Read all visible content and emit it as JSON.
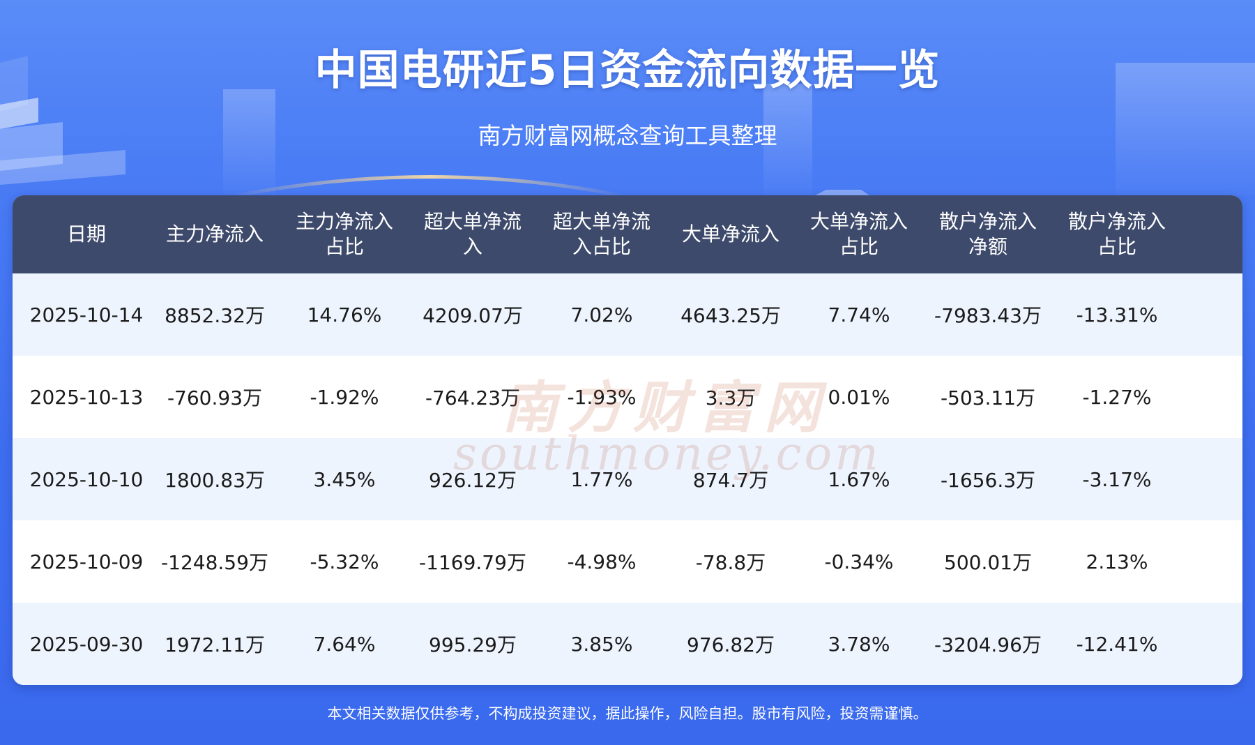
{
  "header": {
    "title": "中国电研近5日资金流向数据一览",
    "subtitle": "南方财富网概念查询工具整理"
  },
  "chart_data": {
    "type": "table",
    "columns": [
      "日期",
      "主力净流入",
      "主力净流入\n占比",
      "超大单净流\n入",
      "超大单净流\n入占比",
      "大单净流入",
      "大单净流入\n占比",
      "散户净流入\n净额",
      "散户净流入\n占比"
    ],
    "rows": [
      [
        "2025-10-14",
        "8852.32万",
        "14.76%",
        "4209.07万",
        "7.02%",
        "4643.25万",
        "7.74%",
        "-7983.43万",
        "-13.31%"
      ],
      [
        "2025-10-13",
        "-760.93万",
        "-1.92%",
        "-764.23万",
        "-1.93%",
        "3.3万",
        "0.01%",
        "-503.11万",
        "-1.27%"
      ],
      [
        "2025-10-10",
        "1800.83万",
        "3.45%",
        "926.12万",
        "1.77%",
        "874.7万",
        "1.67%",
        "-1656.3万",
        "-3.17%"
      ],
      [
        "2025-10-09",
        "-1248.59万",
        "-5.32%",
        "-1169.79万",
        "-4.98%",
        "-78.8万",
        "-0.34%",
        "500.01万",
        "2.13%"
      ],
      [
        "2025-09-30",
        "1972.11万",
        "7.64%",
        "995.29万",
        "3.85%",
        "976.82万",
        "3.78%",
        "-3204.96万",
        "-12.41%"
      ]
    ]
  },
  "watermark": {
    "cn": "南方财富网",
    "en": "southmoney.com"
  },
  "footer": {
    "disclaimer": "本文相关数据仅供参考，不构成投资建议，据此操作，风险自担。股市有风险，投资需谨慎。"
  },
  "colors": {
    "header_bg": "#3d4a6b",
    "row_alt_bg": "#eef4fe",
    "page_bg": "#3f6ff0"
  }
}
